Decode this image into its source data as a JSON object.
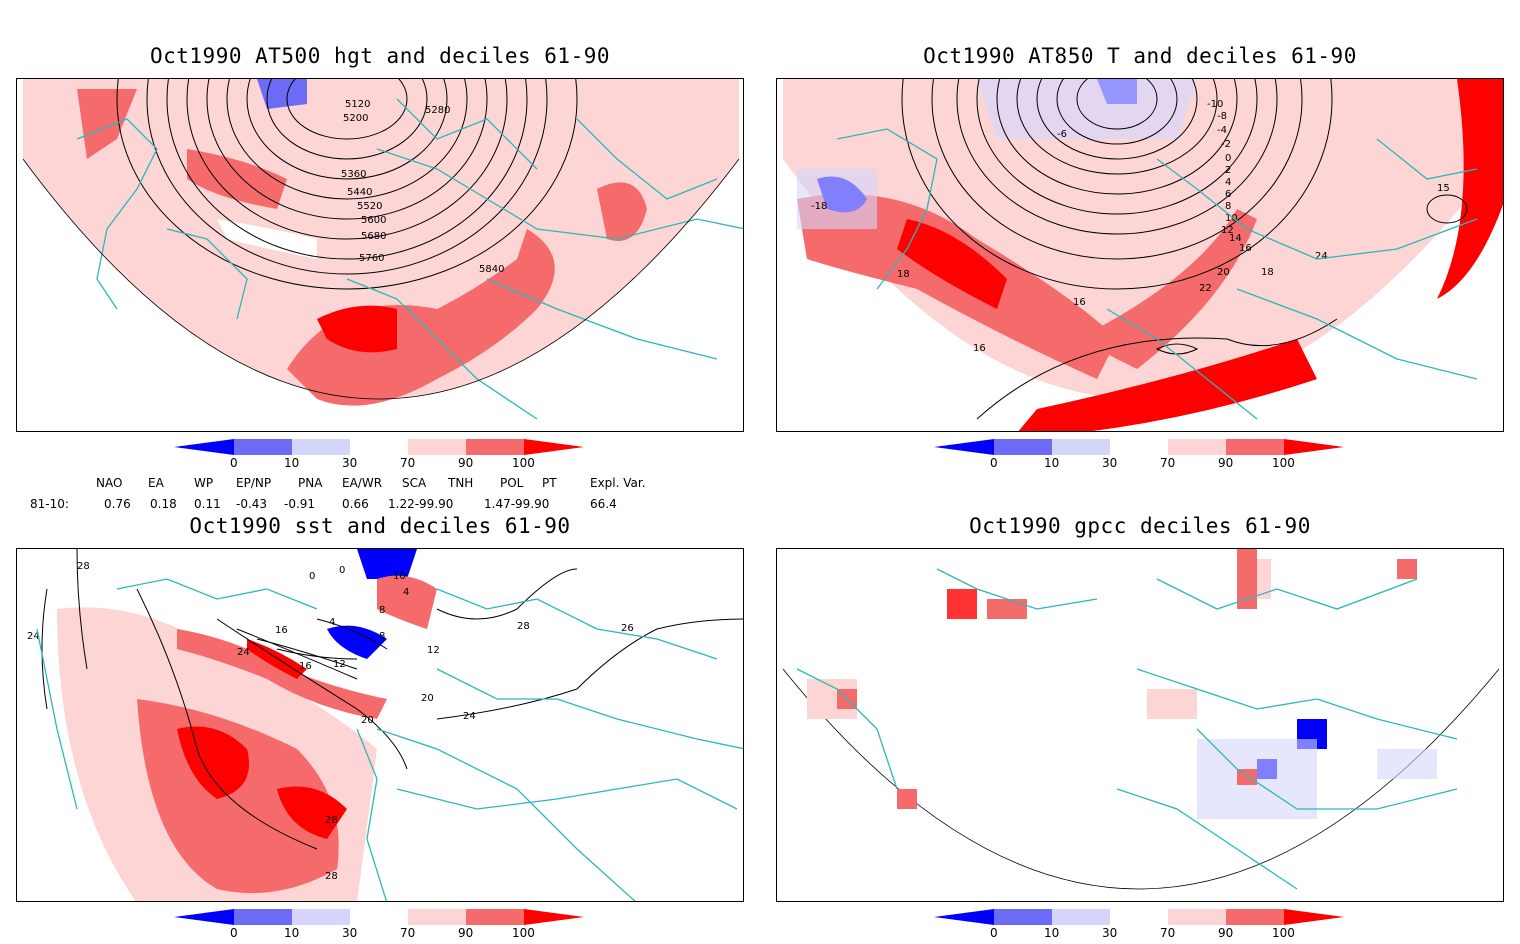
{
  "panels": [
    {
      "title": "Oct1990 AT500 hgt and deciles 61-90",
      "contour_labels": [
        "5120",
        "5200",
        "5280",
        "5360",
        "5440",
        "5520",
        "5600",
        "5680",
        "5760",
        "5840"
      ]
    },
    {
      "title": "Oct1990 AT850 T and deciles 61-90",
      "contour_labels": [
        "-18",
        "-10",
        "-8",
        "-6",
        "-4",
        "-2",
        "0",
        "2",
        "4",
        "6",
        "8",
        "10",
        "12",
        "14",
        "16",
        "18",
        "20",
        "22",
        "24",
        "15",
        "16",
        "18",
        "16"
      ]
    },
    {
      "title": "Oct1990 sst and deciles 61-90",
      "contour_labels": [
        "28",
        "24",
        "0",
        "0",
        "10",
        "4",
        "4",
        "8",
        "8",
        "12",
        "16",
        "24",
        "12",
        "16",
        "20",
        "20",
        "24",
        "28",
        "26",
        "28",
        "28"
      ]
    },
    {
      "title": "Oct1990 gpcc deciles 61-90",
      "contour_labels": []
    }
  ],
  "colorbar": {
    "ticks": [
      "0",
      "10",
      "30",
      "70",
      "90",
      "100"
    ],
    "colors": [
      "#0000ff",
      "#6b6bf5",
      "#d5d5fb",
      "#ffffff",
      "#fdd5d5",
      "#f56b6b",
      "#ff0000"
    ]
  },
  "indices": {
    "headers": [
      "NAO",
      "EA",
      "WP",
      "EP/NP",
      "PNA",
      "EA/WR",
      "SCA",
      "TNH",
      "POL",
      "PT",
      "Expl. Var."
    ],
    "row_label": "81-10:",
    "values": [
      "0.76",
      "0.18",
      "0.11",
      "-0.43",
      "-0.91",
      "0.66",
      "1.22-99.90",
      "1.47-99.90",
      "66.4"
    ]
  },
  "style": {
    "coast_color": "#2bb8b8",
    "contour_color": "#000000"
  }
}
